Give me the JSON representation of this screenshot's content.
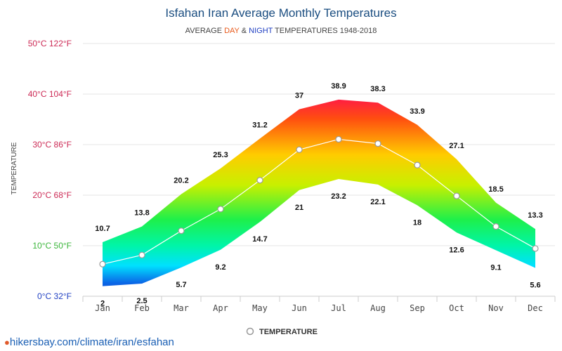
{
  "chart_data": {
    "type": "area",
    "title": "Isfahan Iran Average Monthly Temperatures",
    "subtitle": {
      "prefix": "AVERAGE ",
      "day": "DAY",
      "amp": " & ",
      "night": "NIGHT",
      "suffix": " TEMPERATURES 1948-2018"
    },
    "ylabel": "TEMPERATURE",
    "categories": [
      "Jan",
      "Feb",
      "Mar",
      "Apr",
      "May",
      "Jun",
      "Jul",
      "Aug",
      "Sep",
      "Oct",
      "Nov",
      "Dec"
    ],
    "day_values": [
      10.7,
      13.8,
      20.2,
      25.3,
      31.2,
      37,
      38.9,
      38.3,
      33.9,
      27.1,
      18.5,
      13.3
    ],
    "night_values": [
      2,
      2.5,
      5.7,
      9.2,
      14.7,
      21,
      23.2,
      22.1,
      18,
      12.6,
      9.1,
      5.6
    ],
    "average_values": [
      6.35,
      8.15,
      12.95,
      17.25,
      22.95,
      29,
      31.05,
      30.2,
      25.95,
      19.85,
      13.8,
      9.45
    ],
    "series_name": "TEMPERATURE",
    "ylim": [
      0,
      50
    ],
    "y_ticks": [
      {
        "value": 0,
        "label": "0°C 32°F",
        "color": "#1f3fc2"
      },
      {
        "value": 10,
        "label": "10°C 50°F",
        "color": "#3ab53a"
      },
      {
        "value": 20,
        "label": "20°C 68°F",
        "color": "#cc2a55"
      },
      {
        "value": 30,
        "label": "30°C 86°F",
        "color": "#cc2a55"
      },
      {
        "value": 40,
        "label": "40°C 104°F",
        "color": "#cc2a55"
      },
      {
        "value": 50,
        "label": "50°C 122°F",
        "color": "#cc2a55"
      }
    ],
    "colors": {
      "day": "#e8591a",
      "night": "#1f3fc2",
      "title": "#1a4d80",
      "grid": "#e6e6e6",
      "avg_line": "#ffffff",
      "marker_stroke": "#999999"
    },
    "grid": true,
    "legend_position": "bottom-center"
  },
  "footer": {
    "source_text": "hikersbay.com/climate/iran/esfahan",
    "pin_icon": "location-pin-icon"
  }
}
